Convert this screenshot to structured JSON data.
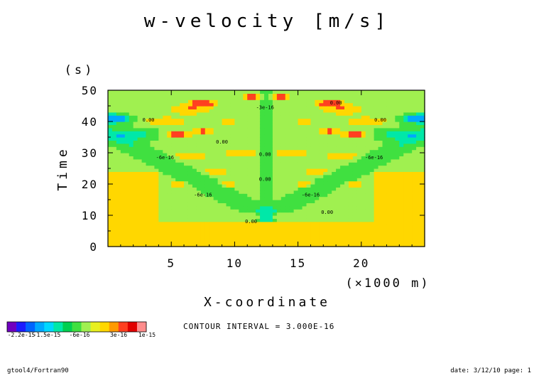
{
  "chart_data": {
    "type": "heatmap",
    "title": "w-velocity [m/s]",
    "xlabel": "X-coordinate",
    "x_unit": "(×1000 m)",
    "ylabel": "Time",
    "y_unit": "(s)",
    "xlim": [
      0,
      25
    ],
    "ylim": [
      0,
      50
    ],
    "x_ticks": [
      "5",
      "10",
      "15",
      "20"
    ],
    "y_ticks": [
      "0",
      "10",
      "20",
      "30",
      "40",
      "50"
    ],
    "x_tick_values": [
      5,
      10,
      15,
      20
    ],
    "y_tick_values": [
      0,
      10,
      20,
      30,
      40,
      50
    ],
    "contour_interval_text": "CONTOUR INTERVAL = 3.000E-16",
    "contour_labels": [
      "0.00",
      "-6e-16",
      "-3e-16"
    ],
    "colorbar": {
      "colors": [
        "#7000c0",
        "#1c1cff",
        "#0064ff",
        "#00a8ff",
        "#00d8ff",
        "#00e8a8",
        "#00d050",
        "#40e040",
        "#a0f050",
        "#e8f020",
        "#ffd700",
        "#ff9a00",
        "#ff4020",
        "#e00000",
        "#ff8c8c"
      ],
      "tick_labels": [
        "-2.2e-15",
        "-1.5e-15",
        "-6e-16",
        "3e-16",
        "1e-15"
      ]
    },
    "colormap": {
      "levels": [
        -2.2e-15,
        -1.5e-15,
        -6e-16,
        -3e-16,
        0,
        3e-16,
        6e-16,
        1e-15
      ],
      "colors": [
        "#1c1cff",
        "#0064ff",
        "#00a8ff",
        "#00e8a8",
        "#40e040",
        "#a0f050",
        "#ffd700",
        "#ff4020",
        "#e00000"
      ]
    }
  },
  "footer": {
    "left": "gtool4/Fortran90",
    "right": "date: 3/12/10 page: 1"
  }
}
